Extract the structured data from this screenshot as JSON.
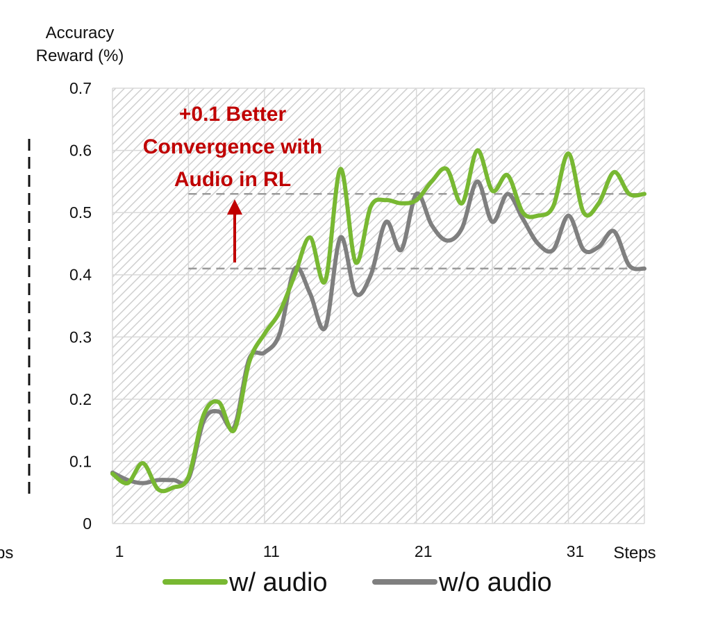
{
  "chart_data": {
    "type": "line",
    "ylabel_line1": "Accuracy",
    "ylabel_line2": "Reward (%)",
    "xlabel": "Steps",
    "left_cut_label": "ps",
    "ylim": [
      0,
      0.7
    ],
    "y_ticks": [
      "0",
      "0.1",
      "0.2",
      "0.3",
      "0.4",
      "0.5",
      "0.6",
      "0.7"
    ],
    "x_ticks": [
      {
        "value": 1,
        "label": "1"
      },
      {
        "value": 11,
        "label": "11"
      },
      {
        "value": 21,
        "label": "21"
      },
      {
        "value": 31,
        "label": "31"
      }
    ],
    "x_range": [
      1,
      36
    ],
    "grid": true,
    "x": [
      1,
      2,
      3,
      4,
      5,
      6,
      7,
      8,
      9,
      10,
      11,
      12,
      13,
      14,
      15,
      16,
      17,
      18,
      19,
      20,
      21,
      22,
      23,
      24,
      25,
      26,
      27,
      28,
      29,
      30,
      31,
      32,
      33,
      34,
      35,
      36
    ],
    "series": [
      {
        "name": "w/ audio",
        "color": "#78b832",
        "values": [
          0.08,
          0.065,
          0.097,
          0.055,
          0.058,
          0.075,
          0.175,
          0.195,
          0.15,
          0.26,
          0.305,
          0.34,
          0.4,
          0.46,
          0.39,
          0.57,
          0.42,
          0.51,
          0.52,
          0.515,
          0.52,
          0.55,
          0.57,
          0.515,
          0.6,
          0.535,
          0.56,
          0.5,
          0.495,
          0.51,
          0.595,
          0.5,
          0.515,
          0.565,
          0.53,
          0.53
        ]
      },
      {
        "name": "w/o audio",
        "color": "#7f7f7f",
        "values": [
          0.082,
          0.07,
          0.065,
          0.07,
          0.07,
          0.072,
          0.165,
          0.18,
          0.155,
          0.265,
          0.275,
          0.305,
          0.41,
          0.37,
          0.315,
          0.46,
          0.37,
          0.4,
          0.485,
          0.44,
          0.53,
          0.48,
          0.455,
          0.475,
          0.55,
          0.485,
          0.53,
          0.49,
          0.45,
          0.44,
          0.495,
          0.44,
          0.445,
          0.47,
          0.415,
          0.41
        ]
      }
    ],
    "reference_lines": [
      {
        "y": 0.53,
        "from_x": 6
      },
      {
        "y": 0.41,
        "from_x": 6
      }
    ],
    "annotation": {
      "lines": [
        "+0.1 Better",
        "Convergence with",
        "Audio in RL"
      ],
      "color": "#c00000"
    }
  }
}
